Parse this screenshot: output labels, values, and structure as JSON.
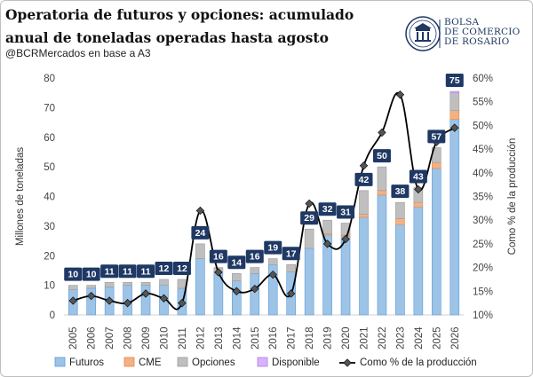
{
  "header": {
    "title": "Operatoria de futuros y opciones: acumulado anual de toneladas operadas hasta agosto",
    "subtitle": "@BCRMercados en base a A3",
    "logo_text": [
      "BOLSA",
      "DE COMERCIO",
      "DE ROSARIO"
    ]
  },
  "colors": {
    "futuros": "#9dc3e6",
    "futuros_stroke": "#5b9bd5",
    "cme": "#f4b183",
    "opciones": "#bfbfbf",
    "disponible": "#d9b3ff",
    "line": "#000000",
    "label_bg": "#1f3864",
    "logo": "#1f3864"
  },
  "chart_data": {
    "type": "bar",
    "stacked": true,
    "categories": [
      "2005",
      "2006",
      "2007",
      "2008",
      "2009",
      "2010",
      "2011",
      "2012",
      "2013",
      "2014",
      "2015",
      "2016",
      "2017",
      "2018",
      "2019",
      "2020",
      "2021",
      "2022",
      "2023",
      "2024",
      "2025",
      "2026"
    ],
    "series": [
      {
        "name": "Futuros",
        "values": [
          8.5,
          9,
          9.5,
          10,
          10,
          10,
          9,
          19,
          14.5,
          11.5,
          14,
          17,
          14.5,
          22.5,
          27,
          26.5,
          33,
          40.5,
          30.5,
          36.5,
          49.5,
          66
        ]
      },
      {
        "name": "CME",
        "values": [
          0,
          0,
          0,
          0,
          0,
          0,
          0,
          0,
          0,
          0,
          0,
          0,
          0,
          0,
          0.5,
          0.5,
          1,
          1.5,
          2,
          1.5,
          2,
          3
        ]
      },
      {
        "name": "Opciones",
        "values": [
          1.5,
          1,
          1.5,
          1,
          1,
          2,
          3,
          5,
          1.5,
          2.5,
          2,
          2,
          2.5,
          6.5,
          4.5,
          4,
          8,
          8,
          5.5,
          5,
          5,
          6
        ]
      },
      {
        "name": "Disponible",
        "values": [
          0,
          0,
          0,
          0,
          0,
          0,
          0,
          0,
          0,
          0,
          0,
          0,
          0,
          0,
          0,
          0,
          0,
          0,
          0,
          0,
          0,
          0.5
        ]
      }
    ],
    "totals": [
      "10",
      "10",
      "11",
      "11",
      "11",
      "12",
      "12",
      "24",
      "16",
      "14",
      "16",
      "19",
      "17",
      "29",
      "32",
      "31",
      "42",
      "50",
      "38",
      "43",
      "57",
      "75"
    ],
    "line": {
      "name": "Como % de la producción",
      "axis": "right",
      "values": [
        13,
        14,
        13,
        12.5,
        14.5,
        13.5,
        12.5,
        32,
        19,
        15,
        15.5,
        18.5,
        14.5,
        33.5,
        25,
        26,
        41.5,
        48.5,
        56.5,
        36.5,
        46.5,
        49.5
      ]
    },
    "yleft": {
      "label": "Millones de toneladas",
      "min": 0,
      "max": 80,
      "ticks": [
        "0",
        "10",
        "20",
        "30",
        "40",
        "50",
        "60",
        "70",
        "80"
      ]
    },
    "yright": {
      "label": "Como % de la producción",
      "min": 10,
      "max": 60,
      "ticks": [
        "10%",
        "15%",
        "20%",
        "25%",
        "30%",
        "35%",
        "40%",
        "45%",
        "50%",
        "55%",
        "60%"
      ]
    },
    "legend": {
      "placement": "bottom",
      "items": [
        "Futuros",
        "CME",
        "Opciones",
        "Disponible",
        "Como % de la producción"
      ]
    }
  }
}
